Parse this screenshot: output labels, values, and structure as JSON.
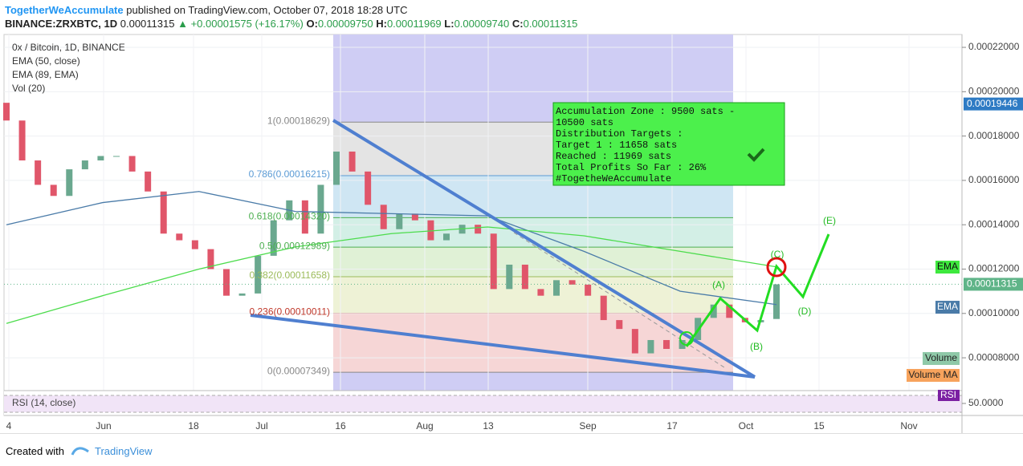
{
  "header": {
    "author": "TogetherWeAccumulate",
    "published": "published on TradingView.com, October 07, 2018 18:28 UTC",
    "symbol": "BINANCE:ZRXBTC, 1D",
    "last": "0.00011315",
    "arrow": "▲",
    "change": "+0.00001575 (+16.17%)",
    "ohlc": [
      {
        "label": "O:",
        "value": "0.00009750"
      },
      {
        "label": "H:",
        "value": "0.00011969"
      },
      {
        "label": "L:",
        "value": "0.00009740"
      },
      {
        "label": "C:",
        "value": "0.00011315"
      }
    ]
  },
  "legend": [
    "0x / Bitcoin, 1D, BINANCE",
    "EMA (50, close)",
    "EMA (89, EMA)",
    "Vol (20)"
  ],
  "chart_data": {
    "type": "candlestick",
    "open": [
      0.000195,
      0.000187,
      0.000169,
      0.000158,
      0.000153,
      0.000165,
      0.000169,
      0.000171,
      0.000171,
      0.000164,
      0.000155,
      0.000136,
      0.000133,
      0.000129,
      0.00012,
      0.000108,
      0.000109,
      0.000126,
      0.000142,
      0.000151,
      0.000136,
      0.000158,
      0.000173,
      0.000164,
      0.000149,
      0.000138,
      0.000145,
      0.000142,
      0.000133,
      0.000136,
      0.00014,
      0.000136,
      0.000111,
      0.000122,
      0.000111,
      0.000108,
      0.000115,
      0.000113,
      0.000108,
      9.7e-05,
      9.3e-05,
      8.2e-05,
      8.8e-05,
      8.4e-05,
      8.8e-05,
      9.8e-05,
      0.000104,
      9.8e-05,
      9.6e-05,
      9.75e-05
    ],
    "close": [
      0.000187,
      0.000169,
      0.000158,
      0.000153,
      0.000165,
      0.000169,
      0.000171,
      0.000171,
      0.000164,
      0.000155,
      0.000136,
      0.000133,
      0.000129,
      0.00012,
      0.000108,
      0.000109,
      0.000126,
      0.000142,
      0.000151,
      0.000136,
      0.000158,
      0.000173,
      0.000164,
      0.000149,
      0.000138,
      0.000145,
      0.000142,
      0.000133,
      0.000136,
      0.00014,
      0.000136,
      0.000111,
      0.000122,
      0.000111,
      0.000108,
      0.000115,
      0.000113,
      0.000108,
      9.7e-05,
      9.3e-05,
      8.2e-05,
      8.8e-05,
      8.4e-05,
      8.8e-05,
      9.8e-05,
      0.000104,
      9.8e-05,
      9.6e-05,
      9.7e-05,
      0.00011315
    ],
    "up_color": "#6aa88f",
    "down_color": "#e0566a",
    "series": [
      {
        "name": "EMA (50, close)",
        "color": "#4a7ba8",
        "values": [
          0.00014,
          0.00015,
          0.000155,
          0.000146,
          0.000145,
          0.000144,
          0.000128,
          0.00011,
          0.000104
        ]
      },
      {
        "name": "EMA (89, EMA)",
        "color": "#4cdc4c",
        "values": [
          9.55e-05,
          0.000108,
          0.00012,
          0.00013,
          0.000136,
          0.000139,
          0.000135,
          0.000128,
          0.000121
        ]
      }
    ],
    "ylim": [
      6.52e-05,
      0.0002258
    ],
    "yticks": [
      {
        "value": 0.00022,
        "label": "0.00022000"
      },
      {
        "value": 0.0002,
        "label": "0.00020000"
      },
      {
        "value": 0.00018,
        "label": "0.00018000"
      },
      {
        "value": 0.00016,
        "label": "0.00016000"
      },
      {
        "value": 0.00014,
        "label": "0.00014000"
      },
      {
        "value": 0.00012,
        "label": "0.00012000"
      },
      {
        "value": 0.0001,
        "label": "0.00010000"
      },
      {
        "value": 8e-05,
        "label": "0.00008000"
      }
    ],
    "xticks": [
      "4",
      "Jun",
      "18",
      "Jul",
      "16",
      "Aug",
      "13",
      "Sep",
      "17",
      "Oct",
      "15",
      "Nov"
    ],
    "fib_levels": [
      {
        "label": "1(0.00018629)",
        "value": 0.00018629,
        "color": "#888888"
      },
      {
        "label": "0.786(0.00016215)",
        "value": 0.00016215,
        "color": "#5b9bd5"
      },
      {
        "label": "0.618(0.00014320)",
        "value": 0.0001432,
        "color": "#4caf50"
      },
      {
        "label": "0.5(0.00012989)",
        "value": 0.00012989,
        "color": "#4caf50"
      },
      {
        "label": "0.382(0.00011658)",
        "value": 0.00011658,
        "color": "#9bbb59"
      },
      {
        "label": "0.236(0.00010011)",
        "value": 0.00010011,
        "color": "#c0392b"
      },
      {
        "label": "0(0.00007349)",
        "value": 7.349e-05,
        "color": "#888888"
      }
    ],
    "price_tags": [
      {
        "value": 0.00019446,
        "color": "#2e7bc4"
      },
      {
        "value": 0.00011315,
        "color": "#5fb488"
      }
    ],
    "ema_tags": [
      {
        "label": "EMA",
        "value": 0.0001209,
        "color": "#3ee83e"
      },
      {
        "label": "EMA",
        "value": 0.0001028,
        "color": "#4a7ba8"
      }
    ],
    "volume_tags": [
      "Volume",
      "Volume MA"
    ],
    "rsi": {
      "label": "RSI (14, close)",
      "tag": "RSI",
      "level": {
        "value": 50,
        "label": "50.0000"
      }
    },
    "annotation": [
      "Accumulation Zone : 9500 sats -",
      "10500 sats",
      "Distribution Targets :",
      "Target 1 : 11658 sats",
      "Reached : 11969 sats",
      "Total Profits So Far : 26%",
      "#TogetheWeAccumulate"
    ],
    "waves": [
      "(A)",
      "(B)",
      "(C)",
      "(D)",
      "(E)"
    ]
  },
  "footer": {
    "created": "Created with",
    "brand": "TradingView"
  }
}
